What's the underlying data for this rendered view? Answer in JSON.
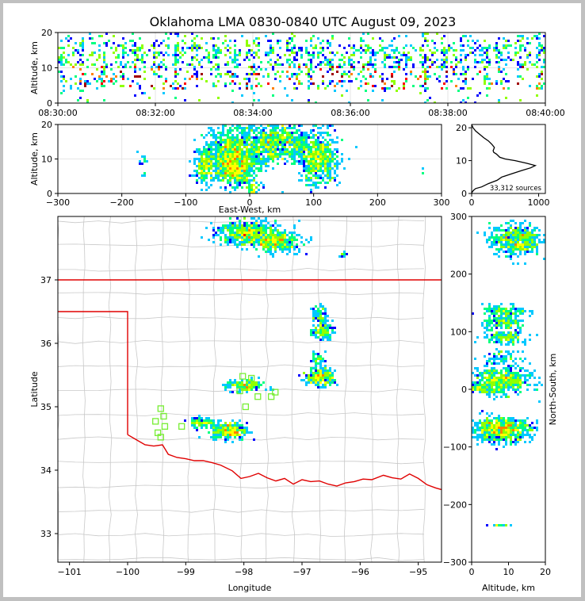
{
  "title": "Oklahoma LMA 0830-0840 UTC August 09, 2023",
  "colors": {
    "state_border": "#e00000",
    "county_lines": "#c8c8c8",
    "station_marker": "#77ee33",
    "density_scale": [
      "#0000ff",
      "#00c8ff",
      "#00ff80",
      "#90ff00",
      "#ffff00",
      "#ff8000",
      "#ff0000",
      "#a00000"
    ]
  },
  "chart_data": [
    {
      "id": "time_height",
      "type": "heatmap",
      "xlabel": "",
      "ylabel": "Altitude, km",
      "x_ticks": [
        "08:30:00",
        "08:32:00",
        "08:34:00",
        "08:36:00",
        "08:38:00",
        "08:40:00"
      ],
      "xlim": [
        "08:30:00",
        "08:40:00"
      ],
      "y_ticks": [
        0,
        10,
        20
      ],
      "ylim": [
        0,
        20
      ],
      "grid": true
    },
    {
      "id": "ew_altitude",
      "type": "heatmap",
      "xlabel": "East-West, km",
      "ylabel": "Altitude, km",
      "x_ticks": [
        -300,
        -200,
        -100,
        0,
        100,
        200,
        300
      ],
      "xlim": [
        -300,
        300
      ],
      "y_ticks": [
        0,
        10,
        20
      ],
      "ylim": [
        0,
        20
      ],
      "grid": true,
      "clusters": [
        {
          "x": -70,
          "y": 8,
          "sx": 8,
          "sy": 2.5,
          "n": 220
        },
        {
          "x": -30,
          "y": 12,
          "sx": 20,
          "sy": 4,
          "n": 700
        },
        {
          "x": -20,
          "y": 7,
          "sx": 15,
          "sy": 2.5,
          "n": 500
        },
        {
          "x": 25,
          "y": 14,
          "sx": 20,
          "sy": 3,
          "n": 400
        },
        {
          "x": 60,
          "y": 15,
          "sx": 18,
          "sy": 3,
          "n": 350
        },
        {
          "x": 108,
          "y": 10,
          "sx": 15,
          "sy": 4,
          "n": 600
        },
        {
          "x": 5,
          "y": 1,
          "sx": 4,
          "sy": 1,
          "n": 60
        },
        {
          "x": -165,
          "y": 9,
          "sx": 5,
          "sy": 2,
          "n": 15
        },
        {
          "x": 270,
          "y": 7,
          "sx": 2,
          "sy": 1,
          "n": 3
        }
      ]
    },
    {
      "id": "altitude_histogram",
      "type": "line",
      "xlabel": "",
      "ylabel": "",
      "x_ticks": [
        0,
        1000
      ],
      "xlim": [
        0,
        1100
      ],
      "y_ticks": [
        0,
        10,
        20
      ],
      "ylim": [
        0,
        21
      ],
      "annotation": "33,312 sources",
      "x": [
        0,
        10,
        30,
        60,
        150,
        250,
        380,
        450,
        600,
        750,
        880,
        950,
        820,
        650,
        500,
        420,
        370,
        330,
        320,
        340,
        300,
        250,
        180,
        120,
        60,
        20,
        0
      ],
      "y": [
        0,
        0.5,
        1,
        1.5,
        2,
        3,
        4,
        5,
        6,
        7,
        7.8,
        8.5,
        9.2,
        10,
        10.5,
        11,
        12,
        12.5,
        13,
        14,
        15,
        16,
        17,
        18,
        19,
        20,
        21
      ]
    },
    {
      "id": "plan_view",
      "type": "heatmap",
      "xlabel": "Longitude",
      "ylabel": "Latitude",
      "x_ticks": [
        -101,
        -100,
        -99,
        -98,
        -97,
        -96,
        -95
      ],
      "xlim": [
        -101.2,
        -94.6
      ],
      "y_ticks": [
        33,
        34,
        35,
        36,
        37
      ],
      "ylim": [
        32.55,
        38.0
      ],
      "grid": false,
      "clusters": [
        {
          "x": -97.95,
          "y": 37.75,
          "sx": 0.25,
          "sy": 0.1,
          "n": 500
        },
        {
          "x": -97.45,
          "y": 37.6,
          "sx": 0.22,
          "sy": 0.08,
          "n": 350
        },
        {
          "x": -96.7,
          "y": 36.45,
          "sx": 0.06,
          "sy": 0.08,
          "n": 60
        },
        {
          "x": -96.65,
          "y": 36.2,
          "sx": 0.09,
          "sy": 0.07,
          "n": 110
        },
        {
          "x": -96.72,
          "y": 35.75,
          "sx": 0.06,
          "sy": 0.05,
          "n": 40
        },
        {
          "x": -96.68,
          "y": 35.47,
          "sx": 0.12,
          "sy": 0.07,
          "n": 260
        },
        {
          "x": -97.98,
          "y": 35.33,
          "sx": 0.16,
          "sy": 0.05,
          "n": 180
        },
        {
          "x": -98.25,
          "y": 34.62,
          "sx": 0.15,
          "sy": 0.07,
          "n": 300
        },
        {
          "x": -98.72,
          "y": 34.75,
          "sx": 0.12,
          "sy": 0.04,
          "n": 100
        },
        {
          "x": -96.3,
          "y": 37.4,
          "sx": 0.04,
          "sy": 0.03,
          "n": 12
        }
      ],
      "stations": [
        {
          "lon": -98.02,
          "lat": 35.48
        },
        {
          "lon": -98.07,
          "lat": 35.25
        },
        {
          "lon": -97.87,
          "lat": 35.45
        },
        {
          "lon": -97.76,
          "lat": 35.16
        },
        {
          "lon": -97.53,
          "lat": 35.16
        },
        {
          "lon": -97.46,
          "lat": 35.23
        },
        {
          "lon": -97.97,
          "lat": 35.0
        },
        {
          "lon": -99.43,
          "lat": 34.97
        },
        {
          "lon": -99.38,
          "lat": 34.85
        },
        {
          "lon": -99.52,
          "lat": 34.77
        },
        {
          "lon": -99.36,
          "lat": 34.69
        },
        {
          "lon": -99.07,
          "lat": 34.69
        },
        {
          "lon": -99.48,
          "lat": 34.59
        },
        {
          "lon": -99.43,
          "lat": 34.52
        }
      ]
    },
    {
      "id": "ns_altitude",
      "type": "heatmap",
      "xlabel": "Altitude, km",
      "ylabel": "North-South, km",
      "x_ticks": [
        0,
        10,
        20
      ],
      "xlim": [
        0,
        20
      ],
      "y_ticks": [
        -300,
        -200,
        -100,
        0,
        100,
        200,
        300
      ],
      "ylim": [
        -300,
        300
      ],
      "grid": false,
      "clusters": [
        {
          "x": 12,
          "y": 260,
          "sx": 3.5,
          "sy": 14,
          "n": 500
        },
        {
          "x": 9,
          "y": 135,
          "sx": 3,
          "sy": 6,
          "n": 120
        },
        {
          "x": 9,
          "y": 115,
          "sx": 3,
          "sy": 6,
          "n": 140
        },
        {
          "x": 9,
          "y": 90,
          "sx": 3,
          "sy": 6,
          "n": 140
        },
        {
          "x": 8,
          "y": 55,
          "sx": 2.5,
          "sy": 5,
          "n": 60
        },
        {
          "x": 8,
          "y": 15,
          "sx": 4,
          "sy": 12,
          "n": 500
        },
        {
          "x": 3,
          "y": 0,
          "sx": 2.5,
          "sy": 3,
          "n": 80
        },
        {
          "x": 8,
          "y": -70,
          "sx": 4,
          "sy": 10,
          "n": 650
        },
        {
          "x": 8,
          "y": -237,
          "sx": 2,
          "sy": 1,
          "n": 15
        }
      ]
    }
  ]
}
